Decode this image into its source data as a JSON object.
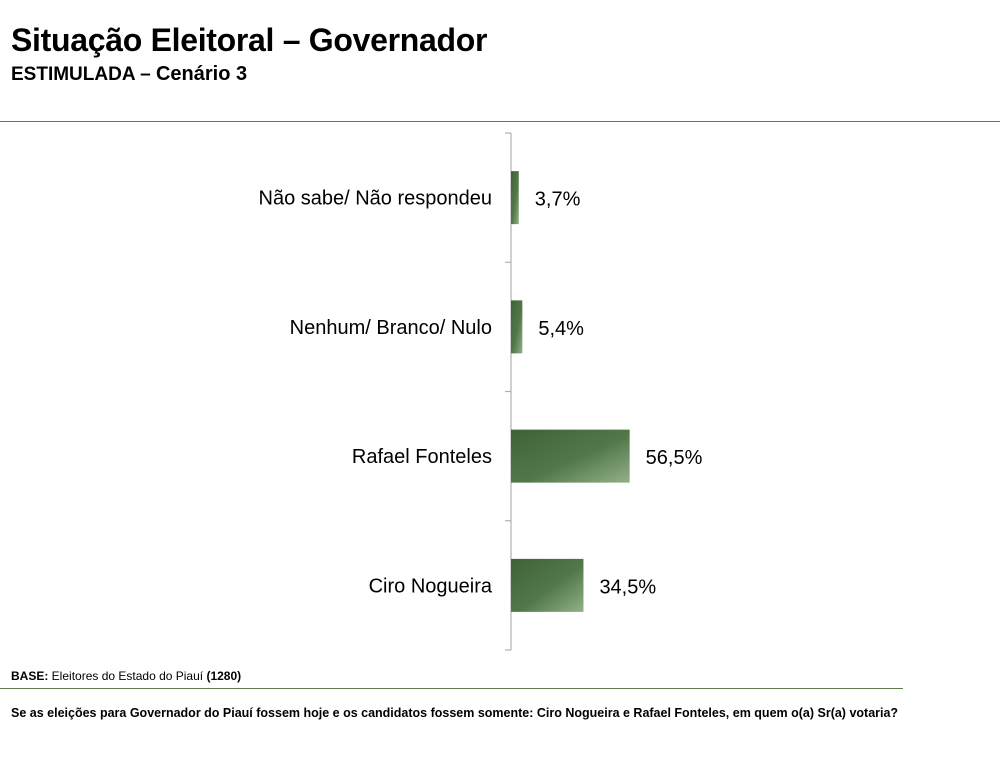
{
  "header": {
    "title": "Situação Eleitoral – Governador",
    "subtitle_a": "ESTIMULADA – ",
    "subtitle_b": "Cenário 3"
  },
  "footer": {
    "base_label": "BASE:",
    "base_text": " Eleitores do Estado do Piauí ",
    "base_count": "(1280)",
    "question": "Se as eleições para Governador do Piauí fossem hoje e os candidatos fossem somente: Ciro Nogueira e Rafael Fonteles, em quem o(a) Sr(a) votaria?"
  },
  "colors": {
    "bar_dark": "#3f6236",
    "bar_mid": "#52784a",
    "bar_light": "#93b088",
    "axis": "#b0b0b0",
    "rule": "#5e7d4e"
  },
  "chart_data": {
    "type": "bar",
    "orientation": "horizontal",
    "categories": [
      "Não sabe/ Não respondeu",
      "Nenhum/ Branco/ Nulo",
      "Rafael Fonteles",
      "Ciro Nogueira"
    ],
    "values": [
      3.7,
      5.4,
      56.5,
      34.5
    ],
    "value_labels": [
      "3,7%",
      "5,4%",
      "56,5%",
      "34,5%"
    ],
    "title": "",
    "xlabel": "",
    "ylabel": "",
    "xlim": [
      0,
      100
    ],
    "grid": false,
    "legend": "none"
  }
}
